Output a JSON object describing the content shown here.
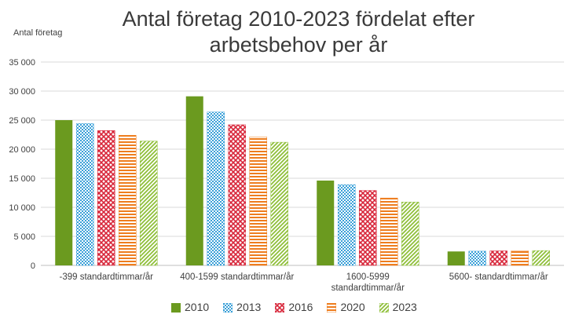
{
  "chart_data": {
    "type": "bar",
    "title": "Antal företag 2010-2023 fördelat efter arbetsbehov per år",
    "ylabel": "Antal företag",
    "ylim": [
      0,
      35000
    ],
    "yticks": [
      "0",
      "5 000",
      "10 000",
      "15 000",
      "20 000",
      "25 000",
      "30 000",
      "35 000"
    ],
    "grid": true,
    "legend_position": "bottom",
    "categories": [
      "-399 standardtimmar/år",
      "400-1599 standardtimmar/år",
      "1600-5999 standardtimmar/år",
      "5600- standardtimmar/år"
    ],
    "category_lines": [
      [
        "-399 standardtimmar/år"
      ],
      [
        "400-1599 standardtimmar/år"
      ],
      [
        "1600-5999",
        "standardtimmar/år"
      ],
      [
        "5600- standardtimmar/år"
      ]
    ],
    "series": [
      {
        "name": "2010",
        "values": [
          25000,
          29100,
          14600,
          2400
        ],
        "color": "#6b9a1f",
        "pattern": "solid"
      },
      {
        "name": "2013",
        "values": [
          24400,
          26400,
          13900,
          2450
        ],
        "color": "#3aa0d8",
        "pattern": "dots"
      },
      {
        "name": "2016",
        "values": [
          23200,
          24200,
          12900,
          2500
        ],
        "color": "#d8263a",
        "pattern": "cross"
      },
      {
        "name": "2020",
        "values": [
          22400,
          22100,
          11600,
          2500
        ],
        "color": "#ee7d1e",
        "pattern": "hlines"
      },
      {
        "name": "2023",
        "values": [
          21400,
          21200,
          10900,
          2550
        ],
        "color": "#8fbf3a",
        "pattern": "diag"
      }
    ]
  }
}
